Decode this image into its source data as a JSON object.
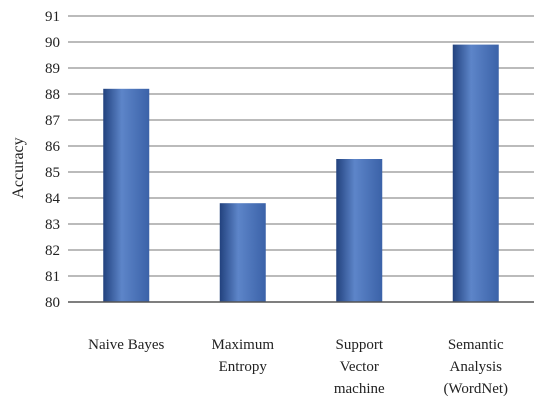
{
  "chart_data": {
    "type": "bar",
    "categories": [
      [
        "Naive Bayes"
      ],
      [
        "Maximum",
        "Entropy"
      ],
      [
        "Support",
        "Vector",
        "machine"
      ],
      [
        "Semantic",
        "Analysis",
        "(WordNet)"
      ]
    ],
    "values": [
      88.2,
      83.8,
      85.5,
      89.9
    ],
    "ylabel": "Accuracy",
    "xlabel": "",
    "title": "",
    "ylim": [
      80,
      91
    ],
    "yticks": [
      80,
      81,
      82,
      83,
      84,
      85,
      86,
      87,
      88,
      89,
      90,
      91
    ],
    "grid": true,
    "legend": "none",
    "colors": {
      "bar": "#3b62a8",
      "bar_light": "#5d85c9",
      "bar_dark": "#22427e",
      "grid": "#777777",
      "axis": "#555555"
    }
  }
}
